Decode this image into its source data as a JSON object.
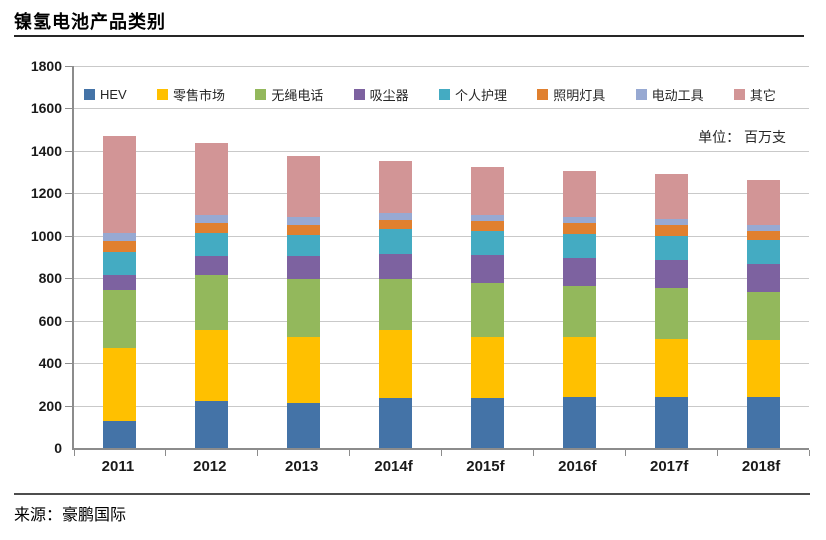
{
  "chart_data": {
    "type": "bar",
    "stacked": true,
    "title": "镍氢电池产品类别",
    "unit_label": "单位： 百万支",
    "source": "来源：豪鹏国际",
    "legend_position": "top",
    "grid": true,
    "categories": [
      "2011",
      "2012",
      "2013",
      "2014f",
      "2015f",
      "2016f",
      "2017f",
      "2018f"
    ],
    "series": [
      {
        "name": "HEV",
        "color": "#4473A7",
        "values": [
          125,
          220,
          210,
          235,
          235,
          240,
          240,
          240
        ]
      },
      {
        "name": "零售市场",
        "color": "#FFC000",
        "values": [
          345,
          335,
          315,
          320,
          290,
          285,
          275,
          270
        ]
      },
      {
        "name": "无绳电话",
        "color": "#93B85C",
        "values": [
          275,
          260,
          270,
          240,
          255,
          240,
          240,
          225
        ]
      },
      {
        "name": "吸尘器",
        "color": "#7D62A0",
        "values": [
          70,
          90,
          110,
          120,
          130,
          130,
          130,
          130
        ]
      },
      {
        "name": "个人护理",
        "color": "#44ABC2",
        "values": [
          110,
          110,
          100,
          115,
          115,
          115,
          115,
          115
        ]
      },
      {
        "name": "照明灯具",
        "color": "#E0802F",
        "values": [
          50,
          45,
          45,
          45,
          45,
          50,
          50,
          45
        ]
      },
      {
        "name": "电动工具",
        "color": "#97A9D2",
        "values": [
          40,
          40,
          40,
          35,
          30,
          30,
          30,
          25
        ]
      },
      {
        "name": "其它",
        "color": "#D29596",
        "values": [
          455,
          335,
          285,
          245,
          225,
          215,
          210,
          215
        ]
      }
    ],
    "totals": [
      1470,
      1435,
      1375,
      1355,
      1325,
      1305,
      1290,
      1265
    ],
    "y_axis": {
      "min": 0,
      "max": 1800,
      "step": 200,
      "ticks": [
        "0",
        "200",
        "400",
        "600",
        "800",
        "1000",
        "1200",
        "1400",
        "1600",
        "1800"
      ]
    }
  }
}
